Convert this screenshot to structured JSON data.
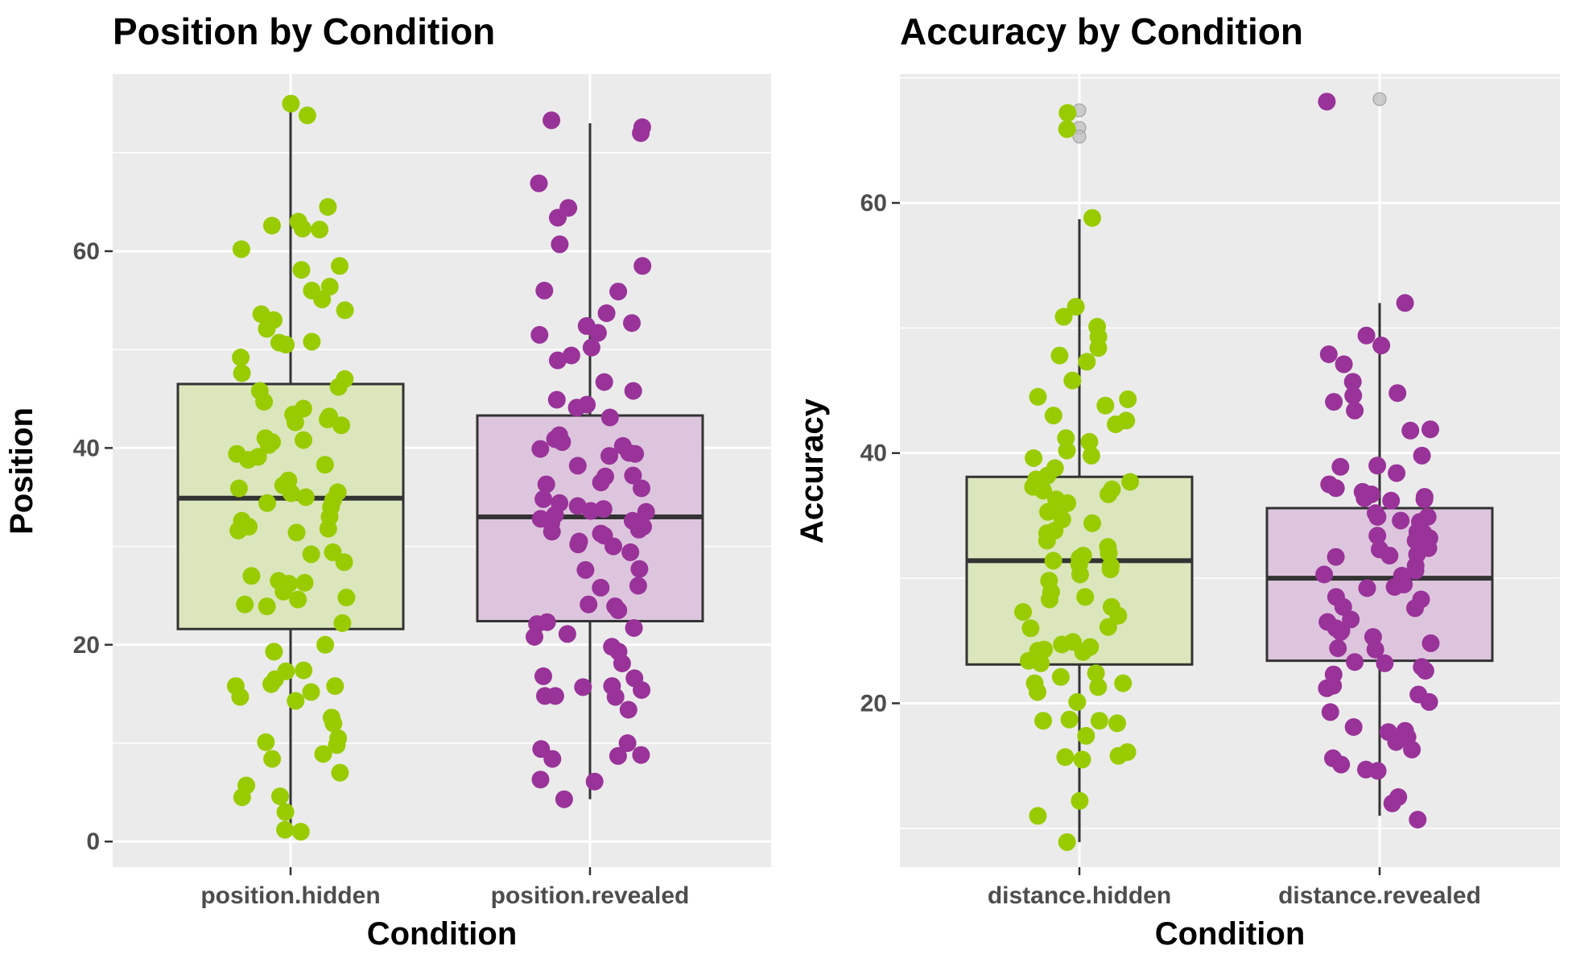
{
  "colors": {
    "panel_bg": "#EBEBEB",
    "grid": "#FFFFFF",
    "tick_text": "#4D4D4D",
    "box_line": "#333333",
    "hidden_point": "#99CC00",
    "hidden_fill": "#DBE6BD",
    "revealed_point": "#993399",
    "revealed_fill": "#DDC6DD",
    "outlier": "#BDBDBD"
  },
  "chart_data": [
    {
      "type": "box",
      "title": "Position by Condition",
      "xlabel": "Condition",
      "ylabel": "Position",
      "categories": [
        "position.hidden",
        "position.revealed"
      ],
      "ylim": [
        -2.6,
        78
      ],
      "yticks": [
        0,
        20,
        40,
        60
      ],
      "y_minor_ticks": [
        10,
        30,
        50,
        70
      ],
      "grid": true,
      "legend": "none",
      "boxes": [
        {
          "category": "position.hidden",
          "min": 1,
          "q1": 21.6,
          "median": 34.9,
          "q3": 46.5,
          "max": 75,
          "outliers": []
        },
        {
          "category": "position.revealed",
          "min": 4.3,
          "q1": 22.4,
          "median": 33,
          "q3": 43.3,
          "max": 73,
          "outliers": []
        }
      ],
      "points": [
        {
          "category": "position.hidden",
          "values": [
            75,
            73.8,
            64.5,
            63,
            62.6,
            62.3,
            62.2,
            60.2,
            58.5,
            58.1,
            56.4,
            56,
            55.1,
            54,
            53.6,
            53,
            52.1,
            50.8,
            50.7,
            50.5,
            49.2,
            47.6,
            47,
            46.2,
            45.8,
            44.7,
            44,
            43.4,
            43.2,
            42.9,
            42.6,
            42.3,
            41,
            40.8,
            40.6,
            40.3,
            39.4,
            39.1,
            38.8,
            38.3,
            36.7,
            36.2,
            35.9,
            35.5,
            35.4,
            35,
            34.7,
            34.4,
            34,
            33,
            32.6,
            32,
            31.8,
            31.6,
            31.4,
            29.4,
            29.2,
            28.4,
            27,
            26.5,
            26.3,
            26.2,
            25.4,
            24.8,
            24.6,
            24.1,
            23.9,
            22.2,
            20,
            19.3,
            17.4,
            17.3,
            16.5,
            16,
            15.8,
            15.8,
            15.2,
            14.7,
            14.3,
            12.6,
            12,
            10.5,
            10.1,
            9.8,
            8.9,
            8.4,
            7,
            5.7,
            4.6,
            4.5,
            3,
            1.2,
            1
          ]
        },
        {
          "category": "position.revealed",
          "values": [
            73.3,
            72.6,
            72,
            66.9,
            64.4,
            63.4,
            60.7,
            58.5,
            56,
            55.9,
            53.7,
            52.7,
            52.4,
            51.7,
            51.5,
            50.2,
            49.4,
            48.9,
            46.7,
            45.8,
            44.9,
            44.4,
            44.1,
            43.1,
            41.3,
            40.9,
            40.6,
            40.2,
            39.9,
            39.5,
            39.4,
            39.2,
            38.2,
            37.2,
            37.1,
            36.5,
            36.3,
            35.9,
            34.8,
            34.4,
            34.1,
            33.8,
            33.6,
            33.5,
            33.2,
            32.8,
            32.6,
            32.4,
            32,
            31.7,
            31.5,
            31.3,
            31.1,
            30.5,
            30.2,
            30,
            29.4,
            27.7,
            27.6,
            26,
            25.8,
            24.1,
            23.9,
            23.5,
            22.3,
            22.1,
            21.7,
            21.1,
            20.8,
            19.8,
            19.3,
            18.1,
            16.8,
            16.6,
            15.8,
            15.7,
            15.4,
            14.8,
            14.8,
            14.7,
            13.4,
            10,
            9.4,
            8.8,
            8.7,
            8.4,
            6.3,
            6.1,
            4.3
          ]
        }
      ]
    },
    {
      "type": "box",
      "title": "Accuracy by Condition",
      "xlabel": "Condition",
      "ylabel": "Accuracy",
      "categories": [
        "distance.hidden",
        "distance.revealed"
      ],
      "ylim": [
        6.9,
        70.3
      ],
      "yticks": [
        20,
        40,
        60
      ],
      "y_minor_ticks": [
        10,
        30,
        50,
        70
      ],
      "grid": true,
      "legend": "none",
      "boxes": [
        {
          "category": "distance.hidden",
          "min": 8.9,
          "q1": 23.1,
          "median": 31.4,
          "q3": 38.1,
          "max": 58.7,
          "outliers": [
            67.4,
            66,
            65.3
          ]
        },
        {
          "category": "distance.revealed",
          "min": 11,
          "q1": 23.4,
          "median": 30,
          "q3": 35.6,
          "max": 52,
          "outliers": [
            68.3
          ]
        }
      ],
      "points": [
        {
          "category": "distance.hidden",
          "values": [
            67.2,
            65.9,
            58.8,
            51.7,
            50.9,
            50.1,
            49.3,
            48.4,
            47.8,
            47.3,
            45.8,
            44.5,
            44.3,
            43.8,
            43,
            42.6,
            42.3,
            41.2,
            40.9,
            40.2,
            39.8,
            39.6,
            38.8,
            38.2,
            37.9,
            37.7,
            37.3,
            37.1,
            37,
            36.7,
            36.3,
            36,
            35.8,
            35.3,
            34.7,
            34.4,
            33.8,
            33.6,
            33,
            32.5,
            32,
            31.8,
            31.6,
            31.4,
            31.1,
            31,
            30.7,
            30.3,
            29.8,
            28.9,
            28.5,
            28.3,
            27.7,
            27.3,
            27,
            26.1,
            26,
            24.9,
            24.7,
            24.5,
            24.3,
            24.2,
            24.1,
            23.4,
            23.2,
            22.4,
            22.1,
            21.6,
            21.6,
            21.3,
            20.9,
            20.1,
            18.7,
            18.6,
            18.6,
            18.4,
            17.4,
            16.1,
            15.8,
            15.7,
            15.5,
            12.2,
            11,
            8.9
          ]
        },
        {
          "category": "distance.revealed",
          "values": [
            68.1,
            52,
            49.4,
            48.6,
            47.9,
            47.1,
            45.7,
            44.8,
            44.6,
            44.1,
            43.4,
            41.9,
            41.8,
            39.8,
            39,
            38.9,
            38.4,
            37.5,
            37.2,
            36.9,
            36.7,
            36.5,
            36.4,
            36.3,
            36.2,
            35.2,
            34.9,
            34.9,
            34.6,
            34.5,
            33.7,
            33.6,
            33.4,
            33.2,
            33,
            32.4,
            32.3,
            31.9,
            31.8,
            31.7,
            31,
            30.6,
            30.3,
            30.2,
            29.5,
            29.3,
            29.2,
            28.5,
            28.3,
            27.7,
            27.6,
            26.7,
            26.5,
            26,
            25.8,
            25.7,
            25.3,
            24.8,
            24.4,
            24.3,
            23.3,
            23.2,
            22.9,
            22.6,
            22.3,
            21.4,
            21.2,
            20.7,
            20.1,
            19.3,
            18.1,
            17.8,
            17.7,
            17.3,
            16.9,
            16.3,
            15.6,
            15.1,
            14.7,
            14.6,
            12.5,
            12,
            10.7
          ]
        }
      ]
    }
  ]
}
